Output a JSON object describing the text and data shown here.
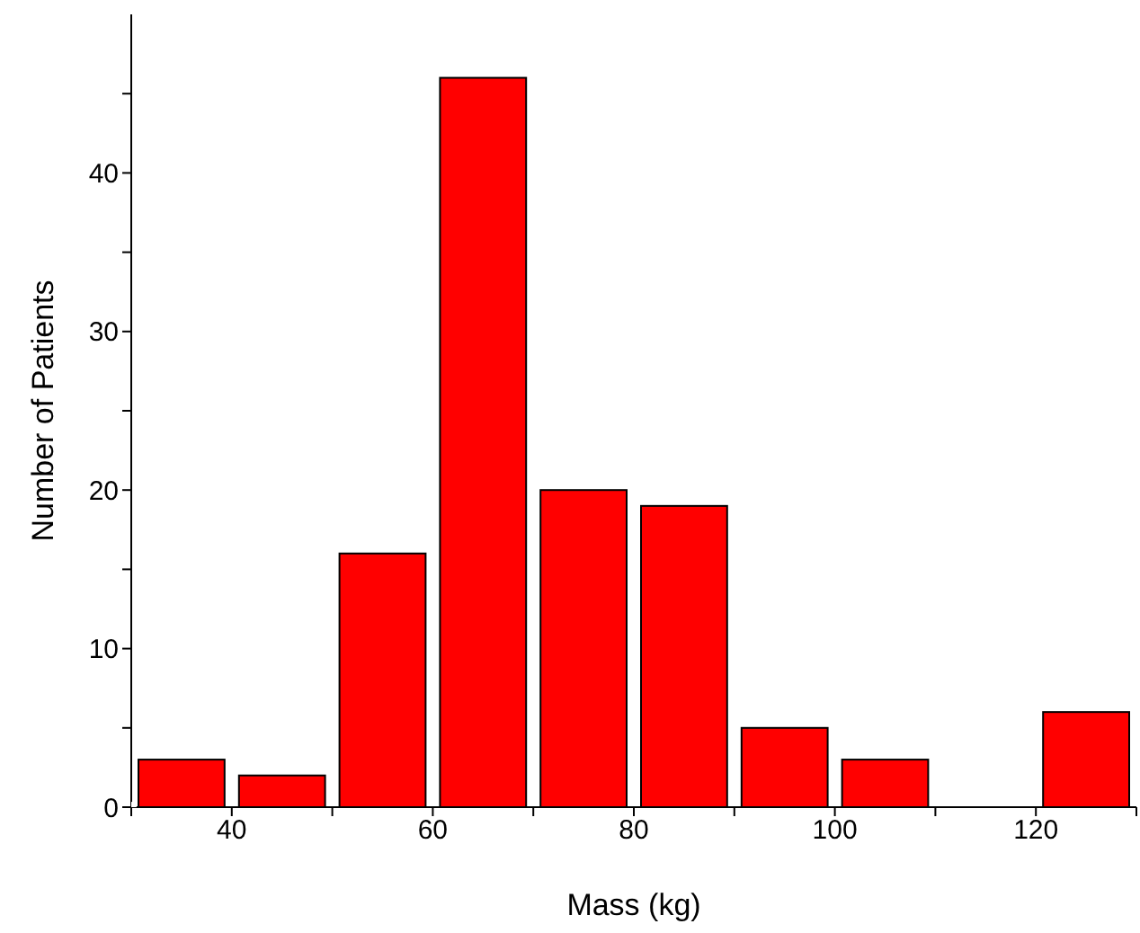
{
  "chart_data": {
    "type": "histogram",
    "xlabel": "Mass (kg)",
    "ylabel": "Number of Patients",
    "bins": [
      30,
      40,
      50,
      60,
      70,
      80,
      90,
      100,
      110,
      120,
      130
    ],
    "values": [
      3,
      2,
      16,
      46,
      20,
      19,
      5,
      3,
      0,
      6
    ],
    "color": "#ff0000",
    "xlim": [
      30,
      130
    ],
    "xticks": [
      {
        "value": 30,
        "label": null
      },
      40,
      {
        "value": 50,
        "label": null
      },
      60,
      {
        "value": 70,
        "label": null
      },
      80,
      {
        "value": 90,
        "label": null
      },
      100,
      {
        "value": 110,
        "label": null
      },
      120,
      {
        "value": 130,
        "label": null
      }
    ],
    "ylim": [
      0,
      50
    ],
    "yticks": [
      0,
      {
        "value": 5,
        "label": null
      },
      10,
      {
        "value": 15,
        "label": null
      },
      20,
      {
        "value": 25,
        "label": null
      },
      30,
      {
        "value": 35,
        "label": null
      },
      40,
      {
        "value": 45,
        "label": null
      }
    ],
    "grid": false
  }
}
